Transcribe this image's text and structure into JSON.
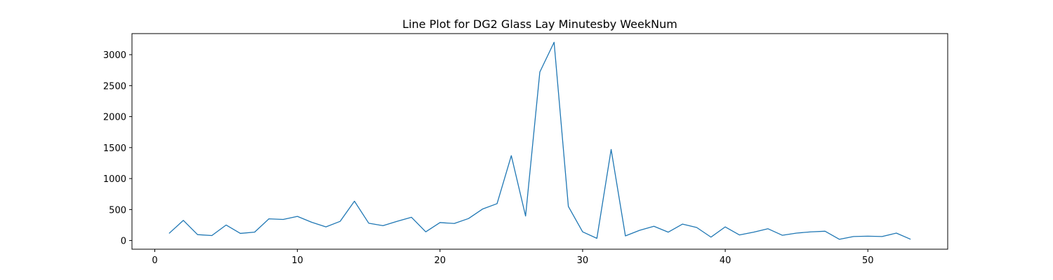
{
  "chart_data": {
    "type": "line",
    "title": "Line Plot for DG2 Glass Lay Minutesby WeekNum",
    "xlabel": "",
    "ylabel": "",
    "xlim": [
      -1.6,
      55.6
    ],
    "ylim": [
      -140,
      3340
    ],
    "xticks": [
      0,
      10,
      20,
      30,
      40,
      50
    ],
    "yticks": [
      0,
      500,
      1000,
      1500,
      2000,
      2500,
      3000
    ],
    "grid": false,
    "legend": false,
    "series": [
      {
        "color": "#1f77b4",
        "x": [
          1,
          2,
          3,
          4,
          5,
          6,
          7,
          8,
          9,
          10,
          11,
          12,
          13,
          14,
          15,
          16,
          17,
          18,
          19,
          20,
          21,
          22,
          23,
          24,
          25,
          26,
          27,
          28,
          29,
          30,
          31,
          32,
          33,
          34,
          35,
          36,
          37,
          38,
          39,
          40,
          41,
          42,
          43,
          44,
          45,
          46,
          47,
          48,
          49,
          50,
          51,
          52,
          53
        ],
        "y": [
          115,
          325,
          95,
          80,
          250,
          115,
          135,
          350,
          340,
          390,
          295,
          220,
          310,
          635,
          280,
          240,
          310,
          375,
          140,
          290,
          275,
          355,
          510,
          595,
          1370,
          395,
          2720,
          3200,
          550,
          140,
          35,
          1470,
          75,
          165,
          230,
          135,
          265,
          210,
          55,
          220,
          90,
          135,
          190,
          85,
          120,
          140,
          150,
          20,
          65,
          70,
          65,
          120,
          20
        ]
      }
    ]
  }
}
